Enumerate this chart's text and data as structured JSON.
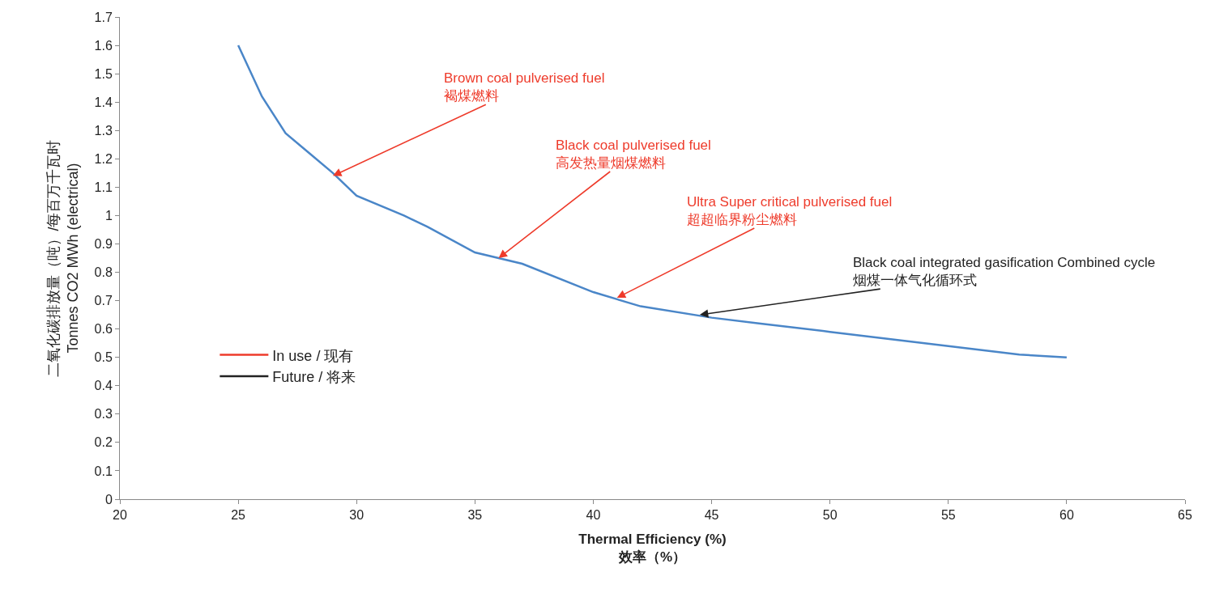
{
  "chart_data": {
    "type": "line",
    "xlabel": "Thermal Efficiency (%)\n效率（%）",
    "ylabel": "二氧化碳排放量（吨）/每百万千瓦时\nTonnes CO2 MWh (electrical)",
    "xlim": [
      20,
      65
    ],
    "xticks": [
      20,
      25,
      30,
      35,
      40,
      45,
      50,
      55,
      60,
      65
    ],
    "ylim": [
      0,
      1.7
    ],
    "yticks": [
      0,
      0.1,
      0.2,
      0.3,
      0.4,
      0.5,
      0.6,
      0.7,
      0.8,
      0.9,
      1,
      1.1,
      1.2,
      1.3,
      1.4,
      1.5,
      1.6,
      1.7
    ],
    "x": [
      25,
      26,
      27,
      28,
      29,
      30,
      32,
      33,
      35,
      37,
      40,
      42,
      45,
      47,
      50,
      55,
      58,
      60
    ],
    "series": [
      {
        "color": "#4a86c8",
        "values": [
          1.6,
          1.42,
          1.29,
          1.22,
          1.15,
          1.07,
          1.0,
          0.96,
          0.87,
          0.83,
          0.73,
          0.68,
          0.64,
          0.62,
          0.59,
          0.54,
          0.51,
          0.5
        ]
      },
      {
        "name": "In use / 现有",
        "color": "#ee3b2b",
        "values": [
          null,
          null,
          null,
          null,
          null,
          null,
          null,
          null,
          null,
          null,
          null,
          null,
          null,
          null,
          null,
          null,
          null,
          null
        ]
      },
      {
        "name": "Future / 将来",
        "color": "#222222",
        "values": [
          null,
          null,
          null,
          null,
          null,
          null,
          null,
          null,
          null,
          null,
          null,
          null,
          null,
          null,
          null,
          null,
          null,
          null
        ]
      }
    ],
    "annotations": [
      {
        "text": "Brown coal pulverised fuel\n褐煤燃料",
        "x": 29,
        "y": 1.14
      },
      {
        "text": "Black coal pulverised fuel\n高发热量烟煤燃料",
        "x": 36,
        "y": 0.85
      },
      {
        "text": "Ultra Super critical pulverised fuel\n超超临界粉尘燃料",
        "x": 41,
        "y": 0.71
      },
      {
        "text": "Black coal integrated gasification Combined cycle\n烟煤一体气化循环式",
        "x": 44.5,
        "y": 0.65
      }
    ],
    "legend": "left",
    "marker": "none",
    "line_style": "solid"
  }
}
